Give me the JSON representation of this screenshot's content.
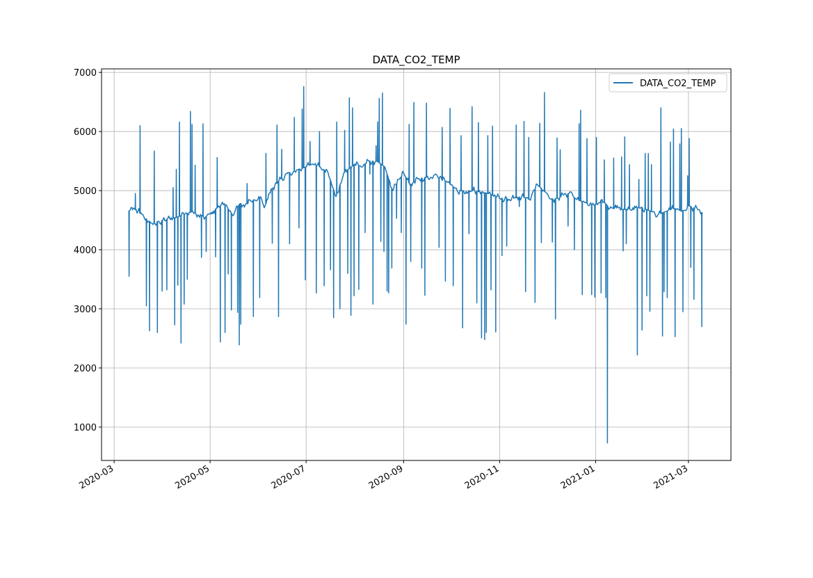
{
  "chart_data": {
    "type": "line",
    "title": "DATA_CO2_TEMP",
    "xlabel": "",
    "ylabel": "",
    "xlim": [
      "2020-02-22",
      "2021-03-28"
    ],
    "ylim": [
      435,
      7060
    ],
    "grid": true,
    "legend": {
      "position": "top-right",
      "entries": [
        "DATA_CO2_TEMP"
      ]
    },
    "series_color": "#1f77b4",
    "x_ticks": [
      {
        "date": "2020-03-01",
        "label": "2020-03"
      },
      {
        "date": "2020-05-01",
        "label": "2020-05"
      },
      {
        "date": "2020-07-01",
        "label": "2020-07"
      },
      {
        "date": "2020-09-01",
        "label": "2020-09"
      },
      {
        "date": "2020-11-01",
        "label": "2020-11"
      },
      {
        "date": "2021-01-01",
        "label": "2021-01"
      },
      {
        "date": "2021-03-01",
        "label": "2021-03"
      }
    ],
    "y_ticks": [
      {
        "value": 1000,
        "label": "1000"
      },
      {
        "value": 2000,
        "label": "2000"
      },
      {
        "value": 3000,
        "label": "3000"
      },
      {
        "value": 4000,
        "label": "4000"
      },
      {
        "value": 5000,
        "label": "5000"
      },
      {
        "value": 6000,
        "label": "6000"
      },
      {
        "value": 7000,
        "label": "7000"
      }
    ],
    "series": [
      {
        "name": "DATA_CO2_TEMP",
        "baseline": [
          [
            "2020-03-10",
            4650
          ],
          [
            "2020-03-15",
            4680
          ],
          [
            "2020-03-20",
            4550
          ],
          [
            "2020-03-25",
            4450
          ],
          [
            "2020-04-01",
            4500
          ],
          [
            "2020-04-10",
            4550
          ],
          [
            "2020-04-20",
            4650
          ],
          [
            "2020-04-28",
            4550
          ],
          [
            "2020-05-05",
            4700
          ],
          [
            "2020-05-10",
            4780
          ],
          [
            "2020-05-15",
            4600
          ],
          [
            "2020-05-20",
            4780
          ],
          [
            "2020-05-25",
            4780
          ],
          [
            "2020-06-01",
            4900
          ],
          [
            "2020-06-05",
            4750
          ],
          [
            "2020-06-10",
            5050
          ],
          [
            "2020-06-15",
            5200
          ],
          [
            "2020-06-20",
            5300
          ],
          [
            "2020-06-25",
            5350
          ],
          [
            "2020-07-01",
            5400
          ],
          [
            "2020-07-05",
            5450
          ],
          [
            "2020-07-10",
            5400
          ],
          [
            "2020-07-15",
            5300
          ],
          [
            "2020-07-20",
            4900
          ],
          [
            "2020-07-25",
            5300
          ],
          [
            "2020-08-01",
            5450
          ],
          [
            "2020-08-05",
            5400
          ],
          [
            "2020-08-10",
            5500
          ],
          [
            "2020-08-15",
            5500
          ],
          [
            "2020-08-20",
            5400
          ],
          [
            "2020-08-25",
            5000
          ],
          [
            "2020-09-01",
            5300
          ],
          [
            "2020-09-05",
            5100
          ],
          [
            "2020-09-10",
            5200
          ],
          [
            "2020-09-20",
            5250
          ],
          [
            "2020-10-01",
            5100
          ],
          [
            "2020-10-05",
            5000
          ],
          [
            "2020-10-15",
            5000
          ],
          [
            "2020-10-25",
            4950
          ],
          [
            "2020-11-01",
            4870
          ],
          [
            "2020-11-10",
            4870
          ],
          [
            "2020-11-15",
            4900
          ],
          [
            "2020-11-20",
            4850
          ],
          [
            "2020-11-25",
            5100
          ],
          [
            "2020-12-01",
            4950
          ],
          [
            "2020-12-05",
            4850
          ],
          [
            "2020-12-10",
            4900
          ],
          [
            "2020-12-15",
            4950
          ],
          [
            "2020-12-20",
            4850
          ],
          [
            "2020-12-25",
            4800
          ],
          [
            "2020-12-31",
            4750
          ],
          [
            "2021-01-05",
            4850
          ],
          [
            "2021-01-10",
            4700
          ],
          [
            "2021-01-20",
            4680
          ],
          [
            "2021-01-30",
            4720
          ],
          [
            "2021-02-05",
            4650
          ],
          [
            "2021-02-10",
            4600
          ],
          [
            "2021-02-15",
            4650
          ],
          [
            "2021-02-20",
            4700
          ],
          [
            "2021-02-25",
            4650
          ],
          [
            "2021-03-01",
            4750
          ],
          [
            "2021-03-05",
            4700
          ],
          [
            "2021-03-10",
            4620
          ]
        ],
        "spikes": [
          [
            "2020-03-10",
            3550
          ],
          [
            "2020-03-14",
            4950
          ],
          [
            "2020-03-17",
            6100
          ],
          [
            "2020-03-21",
            3050
          ],
          [
            "2020-03-23",
            2630
          ],
          [
            "2020-03-26",
            5670
          ],
          [
            "2020-03-28",
            2600
          ],
          [
            "2020-03-31",
            3300
          ],
          [
            "2020-04-03",
            3320
          ],
          [
            "2020-04-07",
            5050
          ],
          [
            "2020-04-08",
            2730
          ],
          [
            "2020-04-09",
            5360
          ],
          [
            "2020-04-10",
            3400
          ],
          [
            "2020-04-11",
            6160
          ],
          [
            "2020-04-12",
            2420
          ],
          [
            "2020-04-14",
            3080
          ],
          [
            "2020-04-16",
            3500
          ],
          [
            "2020-04-18",
            6340
          ],
          [
            "2020-04-19",
            6120
          ],
          [
            "2020-04-21",
            5430
          ],
          [
            "2020-04-25",
            3870
          ],
          [
            "2020-04-26",
            6130
          ],
          [
            "2020-04-28",
            3970
          ],
          [
            "2020-05-04",
            3880
          ],
          [
            "2020-05-05",
            5560
          ],
          [
            "2020-05-07",
            2440
          ],
          [
            "2020-05-10",
            2600
          ],
          [
            "2020-05-12",
            3590
          ],
          [
            "2020-05-14",
            2980
          ],
          [
            "2020-05-18",
            2940
          ],
          [
            "2020-05-19",
            2390
          ],
          [
            "2020-05-20",
            2740
          ],
          [
            "2020-05-24",
            5120
          ],
          [
            "2020-05-28",
            2870
          ],
          [
            "2020-06-01",
            3190
          ],
          [
            "2020-06-05",
            5630
          ],
          [
            "2020-06-09",
            4110
          ],
          [
            "2020-06-12",
            6110
          ],
          [
            "2020-06-13",
            2870
          ],
          [
            "2020-06-15",
            5700
          ],
          [
            "2020-06-20",
            4100
          ],
          [
            "2020-06-23",
            6240
          ],
          [
            "2020-06-26",
            4370
          ],
          [
            "2020-06-28",
            6380
          ],
          [
            "2020-06-29",
            6760
          ],
          [
            "2020-06-30",
            3490
          ],
          [
            "2020-07-03",
            5830
          ],
          [
            "2020-07-07",
            3270
          ],
          [
            "2020-07-09",
            6000
          ],
          [
            "2020-07-12",
            3390
          ],
          [
            "2020-07-16",
            3660
          ],
          [
            "2020-07-18",
            2850
          ],
          [
            "2020-07-20",
            6160
          ],
          [
            "2020-07-22",
            3000
          ],
          [
            "2020-07-25",
            6020
          ],
          [
            "2020-07-27",
            3600
          ],
          [
            "2020-07-28",
            6570
          ],
          [
            "2020-07-29",
            2890
          ],
          [
            "2020-07-30",
            6400
          ],
          [
            "2020-07-31",
            3220
          ],
          [
            "2020-08-03",
            3330
          ],
          [
            "2020-08-07",
            4290
          ],
          [
            "2020-08-10",
            5280
          ],
          [
            "2020-08-12",
            3080
          ],
          [
            "2020-08-14",
            5760
          ],
          [
            "2020-08-15",
            6160
          ],
          [
            "2020-08-16",
            6560
          ],
          [
            "2020-08-17",
            4140
          ],
          [
            "2020-08-18",
            6650
          ],
          [
            "2020-08-19",
            3970
          ],
          [
            "2020-08-21",
            3300
          ],
          [
            "2020-08-22",
            3270
          ],
          [
            "2020-08-24",
            3690
          ],
          [
            "2020-08-27",
            4530
          ],
          [
            "2020-08-30",
            4290
          ],
          [
            "2020-09-02",
            2740
          ],
          [
            "2020-09-04",
            6120
          ],
          [
            "2020-09-05",
            3800
          ],
          [
            "2020-09-07",
            6490
          ],
          [
            "2020-09-12",
            3690
          ],
          [
            "2020-09-14",
            3230
          ],
          [
            "2020-09-15",
            6480
          ],
          [
            "2020-09-23",
            4040
          ],
          [
            "2020-09-25",
            6070
          ],
          [
            "2020-09-27",
            3470
          ],
          [
            "2020-09-30",
            6390
          ],
          [
            "2020-10-02",
            3390
          ],
          [
            "2020-10-07",
            5930
          ],
          [
            "2020-10-08",
            2680
          ],
          [
            "2020-10-12",
            4270
          ],
          [
            "2020-10-14",
            6420
          ],
          [
            "2020-10-17",
            3100
          ],
          [
            "2020-10-18",
            6150
          ],
          [
            "2020-10-20",
            2510
          ],
          [
            "2020-10-22",
            2480
          ],
          [
            "2020-10-23",
            2600
          ],
          [
            "2020-10-24",
            5930
          ],
          [
            "2020-10-26",
            3320
          ],
          [
            "2020-10-27",
            6090
          ],
          [
            "2020-10-29",
            2610
          ],
          [
            "2020-11-02",
            3900
          ],
          [
            "2020-11-05",
            4060
          ],
          [
            "2020-11-11",
            6110
          ],
          [
            "2020-11-13",
            4730
          ],
          [
            "2020-11-16",
            6170
          ],
          [
            "2020-11-17",
            3290
          ],
          [
            "2020-11-19",
            5900
          ],
          [
            "2020-11-23",
            3110
          ],
          [
            "2020-11-26",
            6140
          ],
          [
            "2020-11-27",
            4120
          ],
          [
            "2020-11-29",
            6660
          ],
          [
            "2020-12-04",
            4130
          ],
          [
            "2020-12-06",
            2830
          ],
          [
            "2020-12-07",
            5890
          ],
          [
            "2020-12-09",
            5690
          ],
          [
            "2020-12-14",
            4400
          ],
          [
            "2020-12-18",
            4000
          ],
          [
            "2020-12-21",
            6130
          ],
          [
            "2020-12-22",
            6360
          ],
          [
            "2020-12-23",
            3240
          ],
          [
            "2020-12-26",
            5880
          ],
          [
            "2020-12-29",
            3240
          ],
          [
            "2020-12-31",
            3200
          ],
          [
            "2021-01-01",
            5900
          ],
          [
            "2021-01-04",
            3270
          ],
          [
            "2021-01-06",
            5520
          ],
          [
            "2021-01-07",
            3190
          ],
          [
            "2021-01-08",
            730
          ],
          [
            "2021-01-12",
            5550
          ],
          [
            "2021-01-17",
            5570
          ],
          [
            "2021-01-18",
            3980
          ],
          [
            "2021-01-19",
            5910
          ],
          [
            "2021-01-20",
            4100
          ],
          [
            "2021-01-22",
            5440
          ],
          [
            "2021-01-27",
            2220
          ],
          [
            "2021-01-28",
            5190
          ],
          [
            "2021-01-30",
            2640
          ],
          [
            "2021-02-01",
            5630
          ],
          [
            "2021-02-02",
            3220
          ],
          [
            "2021-02-03",
            5630
          ],
          [
            "2021-02-04",
            2960
          ],
          [
            "2021-02-05",
            5440
          ],
          [
            "2021-02-11",
            6400
          ],
          [
            "2021-02-12",
            2540
          ],
          [
            "2021-02-13",
            3290
          ],
          [
            "2021-02-15",
            3190
          ],
          [
            "2021-02-17",
            5820
          ],
          [
            "2021-02-19",
            6040
          ],
          [
            "2021-02-20",
            2530
          ],
          [
            "2021-02-23",
            5790
          ],
          [
            "2021-02-24",
            6050
          ],
          [
            "2021-02-25",
            2950
          ],
          [
            "2021-02-28",
            5250
          ],
          [
            "2021-03-01",
            5880
          ],
          [
            "2021-03-02",
            3700
          ],
          [
            "2021-03-04",
            3160
          ],
          [
            "2021-03-09",
            2700
          ]
        ]
      }
    ]
  }
}
